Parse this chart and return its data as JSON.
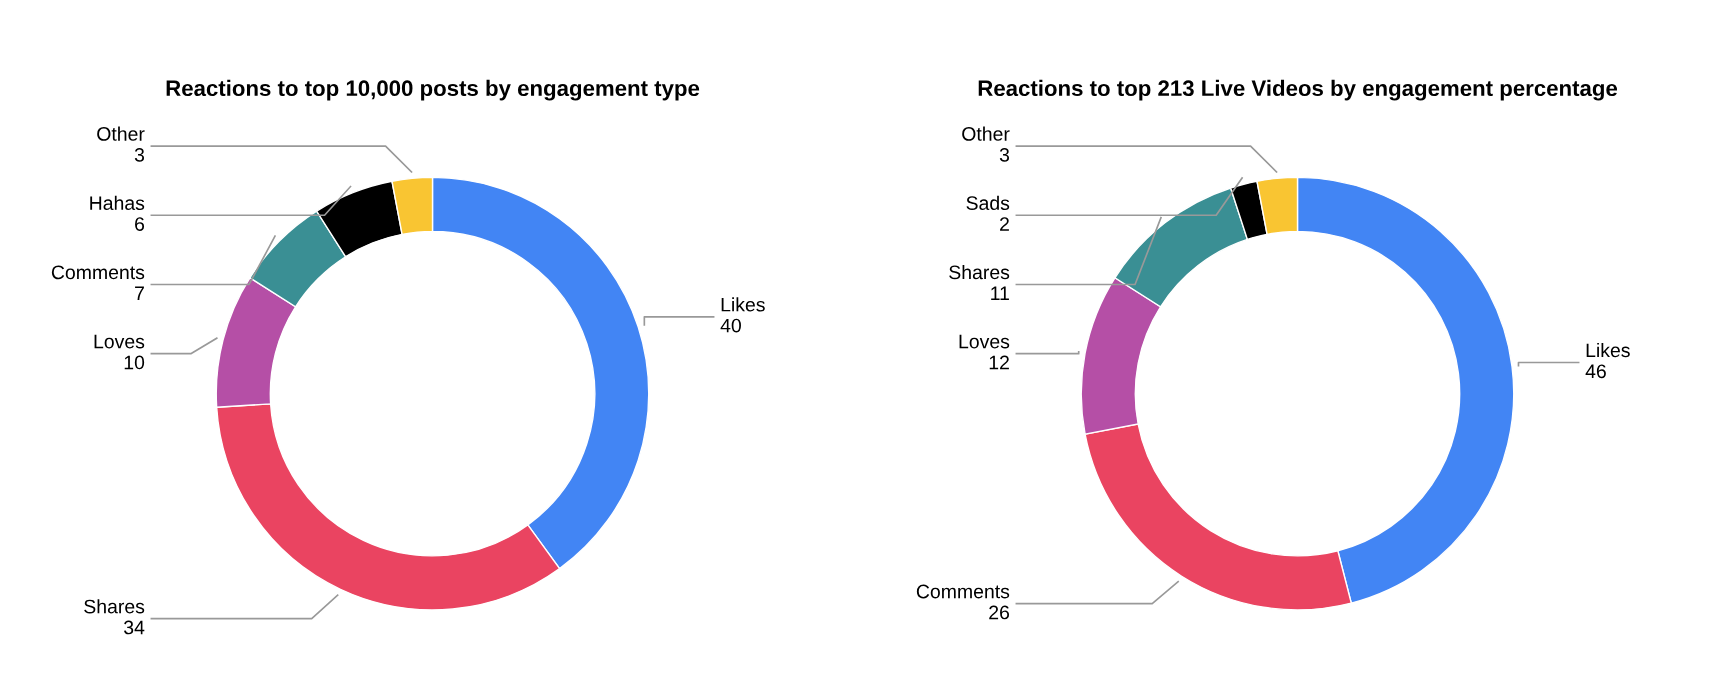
{
  "chart_data": [
    {
      "type": "donut",
      "title": "Reactions to top 10,000 posts by engagement type",
      "categories": [
        "Likes",
        "Shares",
        "Loves",
        "Comments",
        "Hahas",
        "Other"
      ],
      "values": [
        40,
        34,
        10,
        7,
        6,
        3
      ],
      "colors": [
        "#4285f4",
        "#ea4461",
        "#b54fa6",
        "#3a8f94",
        "#000000",
        "#f9c532"
      ],
      "data_labels": true,
      "legend": false
    },
    {
      "type": "donut",
      "title": "Reactions to top 213 Live Videos by engagement percentage",
      "categories": [
        "Likes",
        "Comments",
        "Loves",
        "Shares",
        "Sads",
        "Other"
      ],
      "values": [
        46,
        26,
        12,
        11,
        2,
        3
      ],
      "colors": [
        "#4285f4",
        "#ea4461",
        "#b54fa6",
        "#3a8f94",
        "#000000",
        "#f9c532"
      ],
      "data_labels": true,
      "legend": false
    }
  ]
}
